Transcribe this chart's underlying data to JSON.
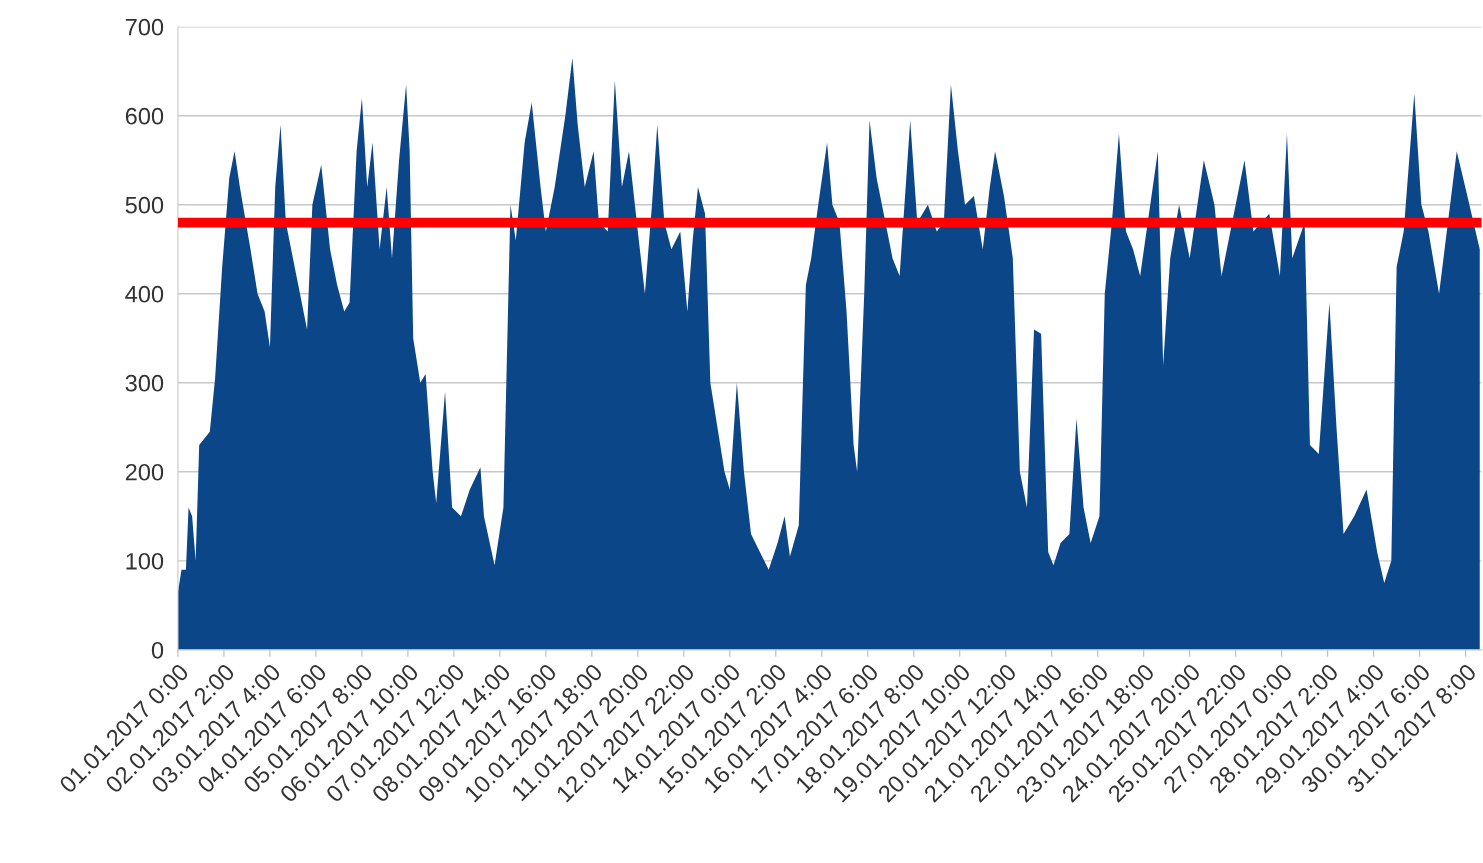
{
  "chart_data": {
    "type": "area",
    "color": "#0b4689",
    "x": [
      "2017-01-01T00:00",
      "2017-01-01T02:00",
      "2017-01-01T04:30",
      "2017-01-01T06:00",
      "2017-01-01T08:00",
      "2017-01-01T10:00",
      "2017-01-01T12:00",
      "2017-01-01T18:00",
      "2017-01-01T21:00",
      "2017-01-02T01:00",
      "2017-01-02T05:00",
      "2017-01-02T08:00",
      "2017-01-02T11:00",
      "2017-01-02T17:00",
      "2017-01-02T21:00",
      "2017-01-03T01:00",
      "2017-01-03T04:00",
      "2017-01-03T07:00",
      "2017-01-03T10:00",
      "2017-01-03T13:00",
      "2017-01-03T17:00",
      "2017-01-03T21:00",
      "2017-01-04T01:00",
      "2017-01-04T04:00",
      "2017-01-04T09:00",
      "2017-01-04T14:00",
      "2017-01-04T18:00",
      "2017-01-04T22:00",
      "2017-01-05T01:00",
      "2017-01-05T05:00",
      "2017-01-05T08:00",
      "2017-01-05T11:00",
      "2017-01-05T14:00",
      "2017-01-05T18:00",
      "2017-01-05T22:00",
      "2017-01-06T01:00",
      "2017-01-06T05:00",
      "2017-01-06T09:00",
      "2017-01-06T11:00",
      "2017-01-06T13:00",
      "2017-01-06T17:00",
      "2017-01-06T20:00",
      "2017-01-07T00:00",
      "2017-01-07T02:00",
      "2017-01-07T07:00",
      "2017-01-07T11:00",
      "2017-01-07T16:00",
      "2017-01-07T21:00",
      "2017-01-08T03:00",
      "2017-01-08T05:00",
      "2017-01-08T11:00",
      "2017-01-08T16:00",
      "2017-01-08T20:00",
      "2017-01-08T23:00",
      "2017-01-09T04:00",
      "2017-01-09T08:00",
      "2017-01-09T13:00",
      "2017-01-09T16:00",
      "2017-01-09T21:00",
      "2017-01-10T03:00",
      "2017-01-10T07:00",
      "2017-01-10T10:00",
      "2017-01-10T14:00",
      "2017-01-10T19:00",
      "2017-01-10T22:00",
      "2017-01-11T03:00",
      "2017-01-11T07:00",
      "2017-01-11T11:00",
      "2017-01-11T15:00",
      "2017-01-11T20:00",
      "2017-01-12T00:00",
      "2017-01-12T04:00",
      "2017-01-12T07:00",
      "2017-01-12T11:00",
      "2017-01-12T15:00",
      "2017-01-12T20:00",
      "2017-01-13T00:00",
      "2017-01-13T03:00",
      "2017-01-13T06:00",
      "2017-01-13T10:00",
      "2017-01-13T13:00",
      "2017-01-13T17:00",
      "2017-01-13T21:00",
      "2017-01-14T00:00",
      "2017-01-14T04:00",
      "2017-01-14T08:00",
      "2017-01-14T12:00",
      "2017-01-14T17:00",
      "2017-01-14T22:00",
      "2017-01-15T03:00",
      "2017-01-15T07:00",
      "2017-01-15T10:00",
      "2017-01-15T15:00",
      "2017-01-15T19:00",
      "2017-01-15T22:00",
      "2017-01-16T02:00",
      "2017-01-16T07:00",
      "2017-01-16T10:00",
      "2017-01-16T14:00",
      "2017-01-16T18:00",
      "2017-01-16T22:00",
      "2017-01-17T00:00",
      "2017-01-17T04:00",
      "2017-01-17T07:00",
      "2017-01-17T11:00",
      "2017-01-17T16:00",
      "2017-01-17T20:00",
      "2017-01-18T00:00",
      "2017-01-18T06:00",
      "2017-01-18T10:00",
      "2017-01-18T16:00",
      "2017-01-18T21:00",
      "2017-01-19T01:00",
      "2017-01-19T05:00",
      "2017-01-19T09:00",
      "2017-01-19T13:00",
      "2017-01-19T18:00",
      "2017-01-19T23:00",
      "2017-01-20T03:00",
      "2017-01-20T06:00",
      "2017-01-20T11:00",
      "2017-01-20T16:00",
      "2017-01-20T20:00",
      "2017-01-21T00:00",
      "2017-01-21T04:00",
      "2017-01-21T08:00",
      "2017-01-21T12:00",
      "2017-01-21T15:00",
      "2017-01-21T19:00",
      "2017-01-22T00:00",
      "2017-01-22T04:00",
      "2017-01-22T08:00",
      "2017-01-22T12:00",
      "2017-01-22T17:00",
      "2017-01-22T20:00",
      "2017-01-23T00:00",
      "2017-01-23T04:00",
      "2017-01-23T08:00",
      "2017-01-23T12:00",
      "2017-01-23T16:00",
      "2017-01-24T02:00",
      "2017-01-24T05:00",
      "2017-01-24T09:00",
      "2017-01-24T14:00",
      "2017-01-24T20:00",
      "2017-01-25T04:00",
      "2017-01-25T10:00",
      "2017-01-25T14:00",
      "2017-01-26T03:00",
      "2017-01-26T08:00",
      "2017-01-26T17:00",
      "2017-01-26T23:00",
      "2017-01-27T03:00",
      "2017-01-27T06:00",
      "2017-01-27T13:00",
      "2017-01-27T16:00",
      "2017-01-27T21:00",
      "2017-01-28T03:00",
      "2017-01-28T07:00",
      "2017-01-28T11:00",
      "2017-01-28T17:00",
      "2017-01-29T00:00",
      "2017-01-29T06:00",
      "2017-01-29T10:00",
      "2017-01-29T14:00",
      "2017-01-29T17:00",
      "2017-01-29T21:00",
      "2017-01-30T03:00",
      "2017-01-30T07:00",
      "2017-01-30T11:00",
      "2017-01-30T17:00",
      "2017-01-30T22:00",
      "2017-01-31T03:00",
      "2017-01-31T09:00",
      "2017-01-31T16:00"
    ],
    "values": [
      65,
      90,
      90,
      160,
      150,
      100,
      230,
      245,
      305,
      430,
      530,
      560,
      520,
      450,
      400,
      380,
      340,
      520,
      590,
      480,
      440,
      400,
      360,
      500,
      545,
      450,
      410,
      380,
      390,
      560,
      620,
      520,
      570,
      450,
      520,
      440,
      550,
      635,
      560,
      350,
      300,
      310,
      200,
      165,
      290,
      160,
      150,
      180,
      205,
      150,
      95,
      160,
      500,
      460,
      570,
      615,
      520,
      470,
      520,
      600,
      665,
      590,
      520,
      560,
      480,
      470,
      640,
      520,
      560,
      470,
      400,
      500,
      590,
      480,
      450,
      470,
      380,
      460,
      520,
      490,
      300,
      250,
      200,
      180,
      300,
      200,
      130,
      110,
      90,
      120,
      150,
      105,
      140,
      410,
      440,
      500,
      570,
      500,
      480,
      380,
      230,
      200,
      400,
      595,
      530,
      480,
      440,
      420,
      595,
      480,
      500,
      470,
      480,
      635,
      560,
      500,
      510,
      450,
      520,
      560,
      510,
      440,
      200,
      160,
      360,
      355,
      110,
      95,
      120,
      130,
      260,
      160,
      120,
      150,
      400,
      480,
      580,
      470,
      450,
      420,
      560,
      320,
      440,
      500,
      440,
      550,
      500,
      420,
      550,
      470,
      490,
      420,
      580,
      440,
      480,
      230,
      220,
      390,
      250,
      130,
      150,
      180,
      110,
      75,
      100,
      430,
      470,
      625,
      500,
      470,
      400,
      480,
      560,
      510,
      450
    ],
    "xlim": [
      "2017-01-01T00:00",
      "2017-01-31T17:00"
    ],
    "xticks": [
      {
        "value": "2017-01-01T00:00",
        "label": "01.01.2017 0:00"
      },
      {
        "value": "2017-01-02T02:00",
        "label": "02.01.2017 2:00"
      },
      {
        "value": "2017-01-03T04:00",
        "label": "03.01.2017 4:00"
      },
      {
        "value": "2017-01-04T06:00",
        "label": "04.01.2017 6:00"
      },
      {
        "value": "2017-01-05T08:00",
        "label": "05.01.2017 8:00"
      },
      {
        "value": "2017-01-06T10:00",
        "label": "06.01.2017 10:00"
      },
      {
        "value": "2017-01-07T12:00",
        "label": "07.01.2017 12:00"
      },
      {
        "value": "2017-01-08T14:00",
        "label": "08.01.2017 14:00"
      },
      {
        "value": "2017-01-09T16:00",
        "label": "09.01.2017 16:00"
      },
      {
        "value": "2017-01-10T18:00",
        "label": "10.01.2017 18:00"
      },
      {
        "value": "2017-01-11T20:00",
        "label": "11.01.2017 20:00"
      },
      {
        "value": "2017-01-12T22:00",
        "label": "12.01.2017 22:00"
      },
      {
        "value": "2017-01-14T00:00",
        "label": "14.01.2017 0:00"
      },
      {
        "value": "2017-01-15T02:00",
        "label": "15.01.2017 2:00"
      },
      {
        "value": "2017-01-16T04:00",
        "label": "16.01.2017 4:00"
      },
      {
        "value": "2017-01-17T06:00",
        "label": "17.01.2017 6:00"
      },
      {
        "value": "2017-01-18T08:00",
        "label": "18.01.2017 8:00"
      },
      {
        "value": "2017-01-19T10:00",
        "label": "19.01.2017 10:00"
      },
      {
        "value": "2017-01-20T12:00",
        "label": "20.01.2017 12:00"
      },
      {
        "value": "2017-01-21T14:00",
        "label": "21.01.2017 14:00"
      },
      {
        "value": "2017-01-22T16:00",
        "label": "22.01.2017 16:00"
      },
      {
        "value": "2017-01-23T18:00",
        "label": "23.01.2017 18:00"
      },
      {
        "value": "2017-01-24T20:00",
        "label": "24.01.2017 20:00"
      },
      {
        "value": "2017-01-25T22:00",
        "label": "25.01.2017 22:00"
      },
      {
        "value": "2017-01-27T00:00",
        "label": "27.01.2017 0:00"
      },
      {
        "value": "2017-01-28T02:00",
        "label": "28.01.2017 2:00"
      },
      {
        "value": "2017-01-29T04:00",
        "label": "29.01.2017 4:00"
      },
      {
        "value": "2017-01-30T06:00",
        "label": "30.01.2017 6:00"
      },
      {
        "value": "2017-01-31T08:00",
        "label": "31.01.2017 8:00"
      }
    ],
    "ylim": [
      0,
      700
    ],
    "yticks": [
      0,
      100,
      200,
      300,
      400,
      500,
      600,
      700
    ],
    "grid": "y",
    "ref_lines": [
      {
        "axis": "y",
        "value": 480,
        "color": "#ff0000",
        "line_style": "solid"
      }
    ]
  }
}
